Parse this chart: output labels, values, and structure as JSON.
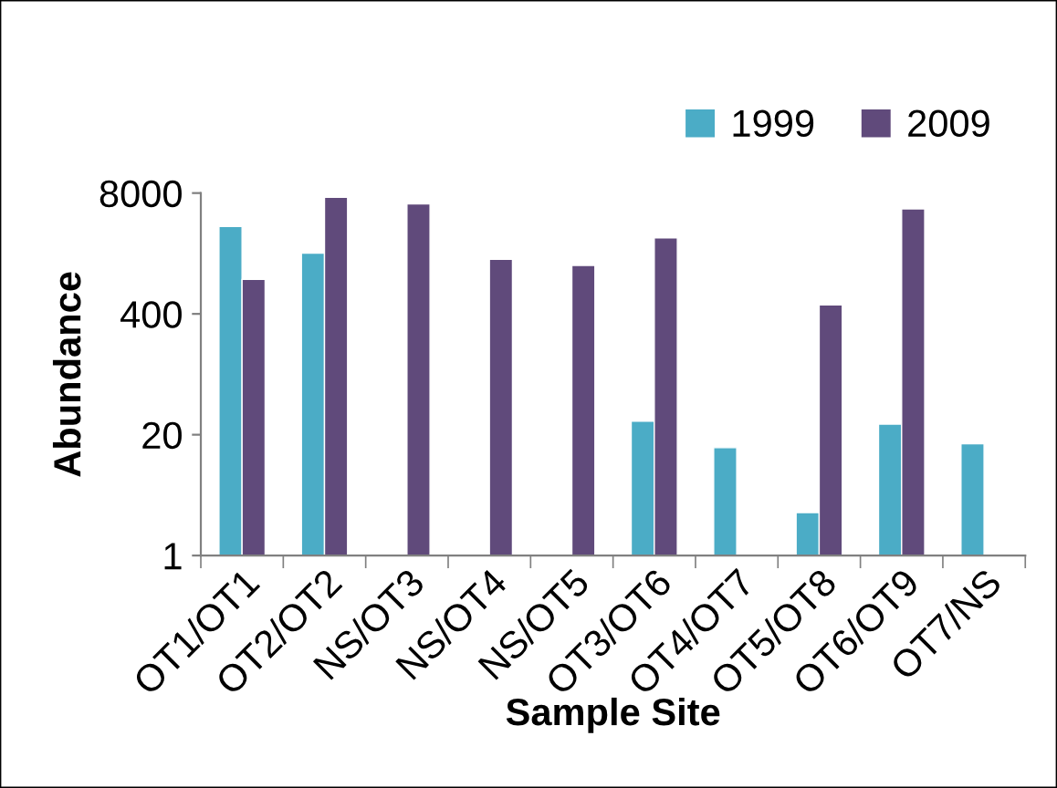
{
  "chart_data": {
    "type": "bar",
    "xlabel": "Sample Site",
    "ylabel": "Abundance",
    "categories": [
      "OT1/OT1",
      "OT2/OT2",
      "NS/OT3",
      "NS/OT4",
      "NS/OT5",
      "OT3/OT6",
      "OT4/OT7",
      "OT5/OT8",
      "OT6/OT9",
      "OT7/NS"
    ],
    "series": [
      {
        "name": "1999",
        "color": "#4bacc6",
        "values": [
          3500,
          1800,
          null,
          null,
          null,
          28,
          14.5,
          2.9,
          26,
          16
        ]
      },
      {
        "name": "2009",
        "color": "#604a7b",
        "values": [
          940,
          7200,
          6100,
          1550,
          1330,
          2640,
          null,
          500,
          5400,
          null
        ]
      }
    ],
    "log": "y",
    "ylim": [
      1,
      8000
    ],
    "yticks": [
      1,
      20,
      400,
      8000
    ],
    "grid": false,
    "legend": "top right"
  }
}
